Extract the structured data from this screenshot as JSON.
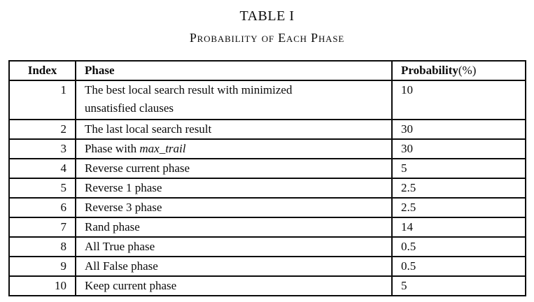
{
  "caption": {
    "label": "TABLE I",
    "title": "Probability of Each Phase"
  },
  "table": {
    "headers": {
      "index": "Index",
      "phase": "Phase",
      "probability_bold": "Probability",
      "probability_unit": "(%)"
    },
    "rows": [
      {
        "index": "1",
        "phase_line1": "The best local search result with minimized",
        "phase_line2": "unsatisfied clauses",
        "probability": "10"
      },
      {
        "index": "2",
        "phase": "The last local search result",
        "probability": "30"
      },
      {
        "index": "3",
        "phase": "Phase with ",
        "phase_math": "max_trail",
        "probability": "30"
      },
      {
        "index": "4",
        "phase": "Reverse current phase",
        "probability": "5"
      },
      {
        "index": "5",
        "phase": "Reverse 1 phase",
        "probability": "2.5"
      },
      {
        "index": "6",
        "phase": "Reverse 3 phase",
        "probability": "2.5"
      },
      {
        "index": "7",
        "phase": "Rand phase",
        "probability": "14"
      },
      {
        "index": "8",
        "phase": "All True phase",
        "probability": "0.5"
      },
      {
        "index": "9",
        "phase": "All False phase",
        "probability": "0.5"
      },
      {
        "index": "10",
        "phase": "Keep current phase",
        "probability": "5"
      }
    ]
  }
}
